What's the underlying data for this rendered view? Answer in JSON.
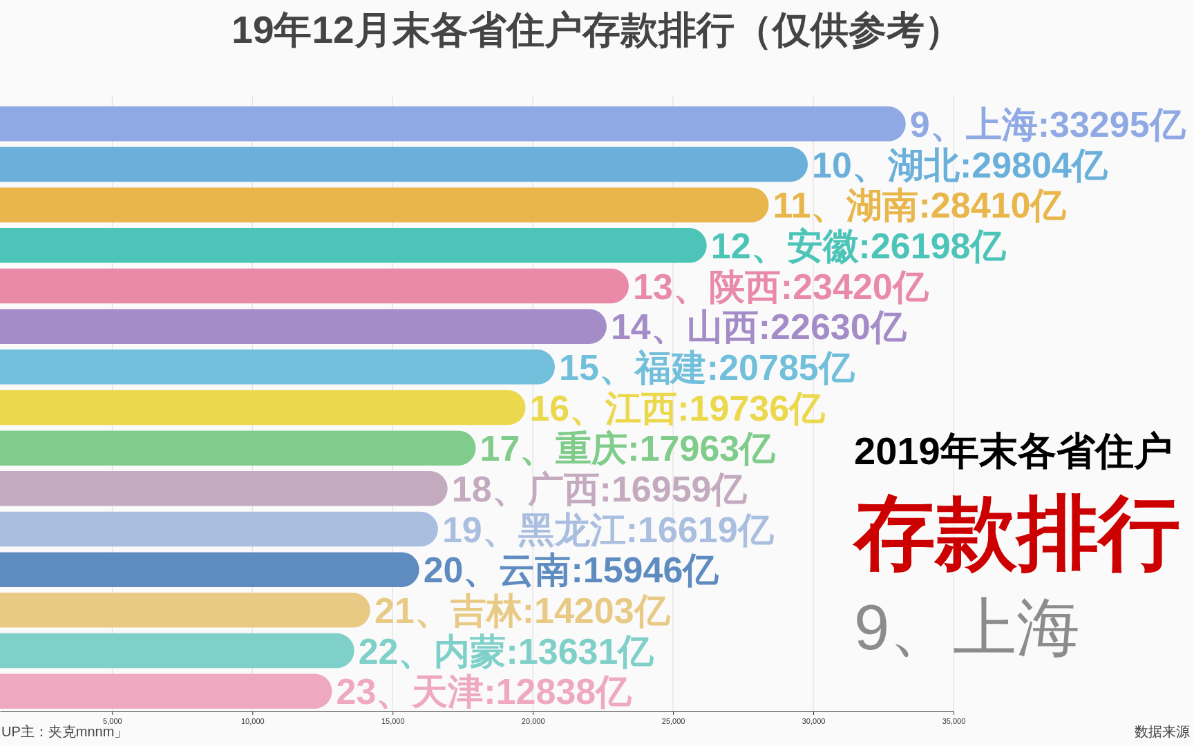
{
  "chart_data": {
    "type": "bar",
    "orientation": "horizontal",
    "title": "19年12月末各省住户存款排行（仅供参考）",
    "categories": [
      null,
      null,
      null,
      null,
      null,
      null,
      null,
      null,
      null,
      null,
      null,
      null,
      null,
      null,
      null
    ],
    "values": [
      33295,
      29804,
      28410,
      26198,
      23420,
      22630,
      20785,
      19736,
      17963,
      16959,
      16619,
      15946,
      14203,
      13631,
      12838
    ],
    "colors": [
      "#8fa9e4",
      "#6ab0da",
      "#e8b64a",
      "#4cc4b8",
      "#e88aa8",
      "#a48cc8",
      "#72bfdc",
      "#ecd84c",
      "#80cc8a",
      "#c4aabf",
      "#aabfdf",
      "#5f8cc0",
      "#e8ca84",
      "#7ed0c8",
      "#eea8c0"
    ],
    "value_labels": [
      "9、上海:33295亿",
      "10、湖北:29804亿",
      "11、湖南:28410亿",
      "12、安徽:26198亿",
      "13、陕西:23420亿",
      "14、山西:22630亿",
      "15、福建:20785亿",
      "16、江西:19736亿",
      "17、重庆:17963亿",
      "18、广西:16959亿",
      "19、黑龙江:16619亿",
      "20、云南:15946亿",
      "21、吉林:14203亿",
      "22、内蒙:13631亿",
      "23、天津:12838亿"
    ],
    "xlim": [
      1000,
      35000
    ],
    "xticks": [
      {
        "value": 5000,
        "label": "5,000"
      },
      {
        "value": 10000,
        "label": "10,000"
      },
      {
        "value": 15000,
        "label": "15,000"
      },
      {
        "value": 20000,
        "label": "20,000"
      },
      {
        "value": 25000,
        "label": "25,000"
      },
      {
        "value": 30000,
        "label": "30,000"
      },
      {
        "value": 35000,
        "label": "35,000"
      }
    ],
    "grid": "x",
    "tick_labels": "x",
    "annotations": [
      "2019年末各省住户",
      "存款排行",
      "9、上海",
      "UP主：夹克mnnm」",
      "数据来源"
    ]
  }
}
